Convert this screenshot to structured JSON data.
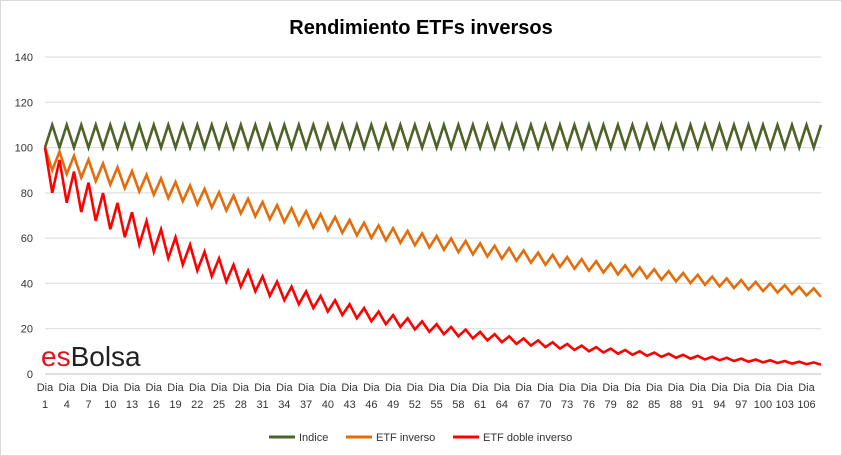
{
  "chart_data": {
    "type": "line",
    "title": "Rendimiento ETFs inversos",
    "xlabel": "",
    "ylabel": "",
    "ylim": [
      0,
      140
    ],
    "yticks": [
      0,
      20,
      40,
      60,
      80,
      100,
      120,
      140
    ],
    "grid": true,
    "legend_position": "bottom",
    "x_prefix": "Dia",
    "x_start": 1,
    "x_end": 108,
    "x_tick_labels": [
      "1",
      "4",
      "7",
      "10",
      "13",
      "16",
      "19",
      "22",
      "25",
      "28",
      "31",
      "34",
      "37",
      "40",
      "43",
      "46",
      "49",
      "52",
      "55",
      "58",
      "61",
      "64",
      "67",
      "70",
      "73",
      "76",
      "79",
      "82",
      "85",
      "88",
      "91",
      "94",
      "97",
      "100",
      "103",
      "106"
    ],
    "daily_change_pct": 10,
    "start_value": 100,
    "series": [
      {
        "name": "Indice",
        "color": "#4f6228",
        "leverage": 1
      },
      {
        "name": "ETF inverso",
        "color": "#e46c0a",
        "leverage": -1
      },
      {
        "name": "ETF doble inverso",
        "color": "#ff0000",
        "leverage": -2
      }
    ]
  },
  "brand": {
    "prefix": "es",
    "suffix": "Bolsa",
    "prefix_color": "#e0121b"
  }
}
